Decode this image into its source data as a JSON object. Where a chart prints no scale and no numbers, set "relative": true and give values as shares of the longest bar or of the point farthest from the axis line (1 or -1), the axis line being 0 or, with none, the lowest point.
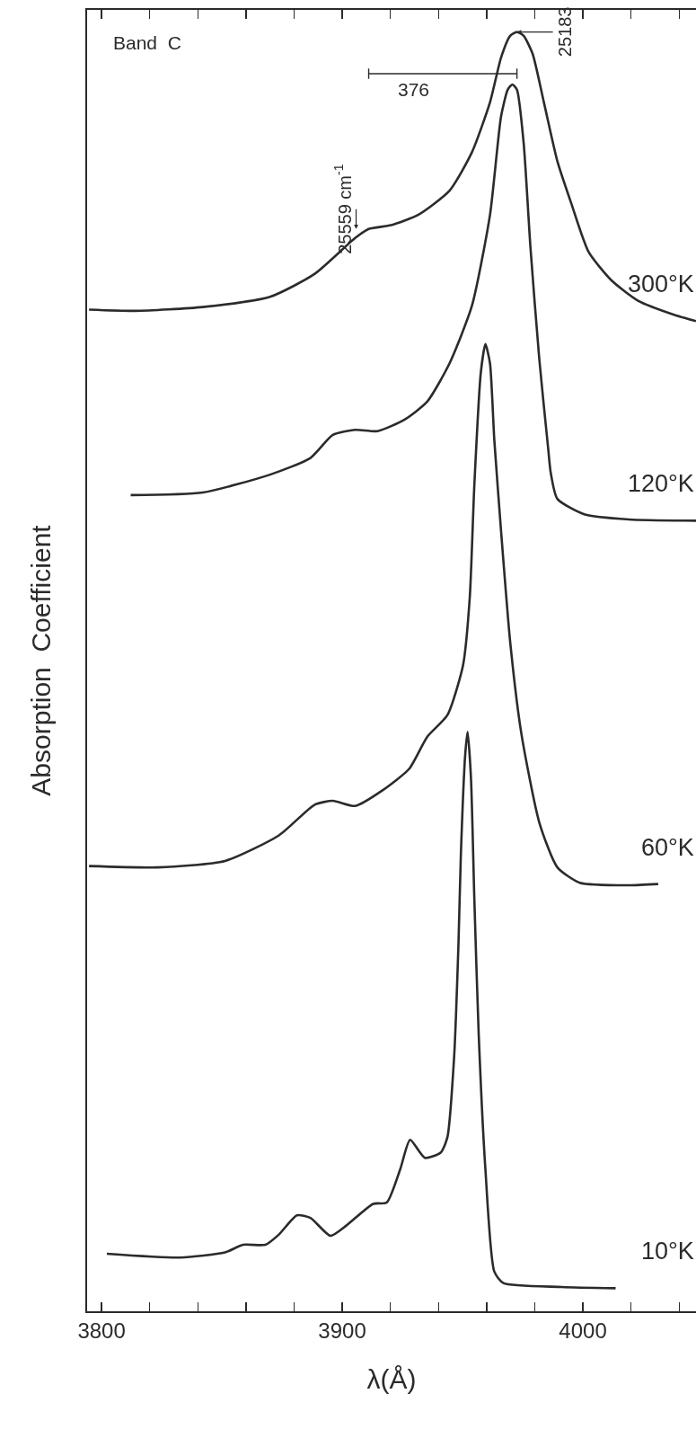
{
  "chart_data": {
    "type": "line",
    "relative": true,
    "xlabel": "λ(Å)",
    "ylabel": "Absorption  Coefficient",
    "xlim": [
      3794,
      4047
    ],
    "xticks": [
      3800,
      {
        "value": 3820,
        "label": null
      },
      {
        "value": 3840,
        "label": null
      },
      {
        "value": 3860,
        "label": null
      },
      {
        "value": 3880,
        "label": null
      },
      3900,
      {
        "value": 3920,
        "label": null
      },
      {
        "value": 3940,
        "label": null
      },
      {
        "value": 3960,
        "label": null
      },
      {
        "value": 3980,
        "label": null
      },
      4000,
      {
        "value": 4020,
        "label": null
      },
      {
        "value": 4040,
        "label": null
      }
    ],
    "grid": false,
    "legend": false,
    "marker": "none",
    "line_style": "solid",
    "tick_labels": "x",
    "annotations": [
      "Band  C",
      {
        "text": "25559 cm$^{-1}$",
        "x": 3911,
        "y": 0.846
      },
      {
        "text": "25183",
        "x": 3972.6,
        "y": 1.0
      },
      "376"
    ],
    "series": [
      {
        "name": "300°K",
        "color": "#2b2b2b",
        "x": [
          3794.8,
          3814.0,
          3842.0,
          3870.0,
          3888.6,
          3905.4,
          3911.0,
          3920.3,
          3931.5,
          3944.6,
          3953.9,
          3961.4,
          3966.0,
          3969.8,
          3972.6,
          3975.4,
          3979.1,
          3983.8,
          3989.4,
          3995.0,
          4002.4,
          4011.8,
          4022.9,
          4037.9,
          4047
        ],
        "values": [
          0.783,
          0.782,
          0.785,
          0.793,
          0.811,
          0.839,
          0.846,
          0.849,
          0.857,
          0.876,
          0.906,
          0.945,
          0.98,
          0.997,
          1.0,
          0.997,
          0.983,
          0.945,
          0.899,
          0.867,
          0.828,
          0.806,
          0.79,
          0.779,
          0.774
        ]
      },
      {
        "name": "120°K",
        "color": "#2b2b2b",
        "x": [
          3812.1,
          3842.0,
          3870.0,
          3886.8,
          3896.1,
          3905.4,
          3914.7,
          3925.9,
          3935.3,
          3944.6,
          3953.9,
          3961.4,
          3966.0,
          3968.8,
          3970.7,
          3972.6,
          3975.4,
          3978.2,
          3981.9,
          3985.6,
          3986.6,
          3989.4,
          4000.6,
          4019.2,
          4047
        ],
        "values": [
          0.638,
          0.64,
          0.654,
          0.667,
          0.685,
          0.689,
          0.688,
          0.697,
          0.711,
          0.741,
          0.786,
          0.857,
          0.934,
          0.955,
          0.959,
          0.955,
          0.913,
          0.832,
          0.744,
          0.674,
          0.656,
          0.635,
          0.623,
          0.619,
          0.618
        ]
      },
      {
        "name": "60°K",
        "color": "#2b2b2b",
        "x": [
          3794.8,
          3823.3,
          3851.3,
          3873.7,
          3888.6,
          3896.1,
          3905.4,
          3916.6,
          3927.8,
          3935.3,
          3943.7,
          3950.2,
          3953.0,
          3954.9,
          3957.6,
          3959.5,
          3961.4,
          3963.2,
          3966.0,
          3969.8,
          3974.4,
          3981.9,
          3989.4,
          3998.7,
          4019.2,
          4031.3
        ],
        "values": [
          0.348,
          0.347,
          0.352,
          0.372,
          0.396,
          0.399,
          0.395,
          0.407,
          0.424,
          0.449,
          0.466,
          0.505,
          0.558,
          0.646,
          0.734,
          0.756,
          0.741,
          0.681,
          0.61,
          0.523,
          0.452,
          0.382,
          0.347,
          0.335,
          0.333,
          0.334
        ]
      },
      {
        "name": "10°K",
        "color": "#2b2b2b",
        "x": [
          3802.2,
          3832.6,
          3851.3,
          3858.8,
          3868.1,
          3873.7,
          3881.2,
          3886.8,
          3895.1,
          3901.7,
          3912.9,
          3918.5,
          3924.1,
          3928.2,
          3934.3,
          3940.9,
          3943.7,
          3946.5,
          3948.3,
          3949.3,
          3951.1,
          3952.1,
          3953.5,
          3954.9,
          3956.7,
          3959.5,
          3963.2,
          3967.0,
          3991.2,
          4013.6
        ],
        "values": [
          0.045,
          0.042,
          0.046,
          0.052,
          0.052,
          0.06,
          0.075,
          0.073,
          0.059,
          0.067,
          0.084,
          0.085,
          0.111,
          0.134,
          0.12,
          0.124,
          0.136,
          0.199,
          0.287,
          0.357,
          0.435,
          0.453,
          0.417,
          0.322,
          0.217,
          0.111,
          0.031,
          0.022,
          0.019,
          0.018
        ]
      }
    ]
  }
}
